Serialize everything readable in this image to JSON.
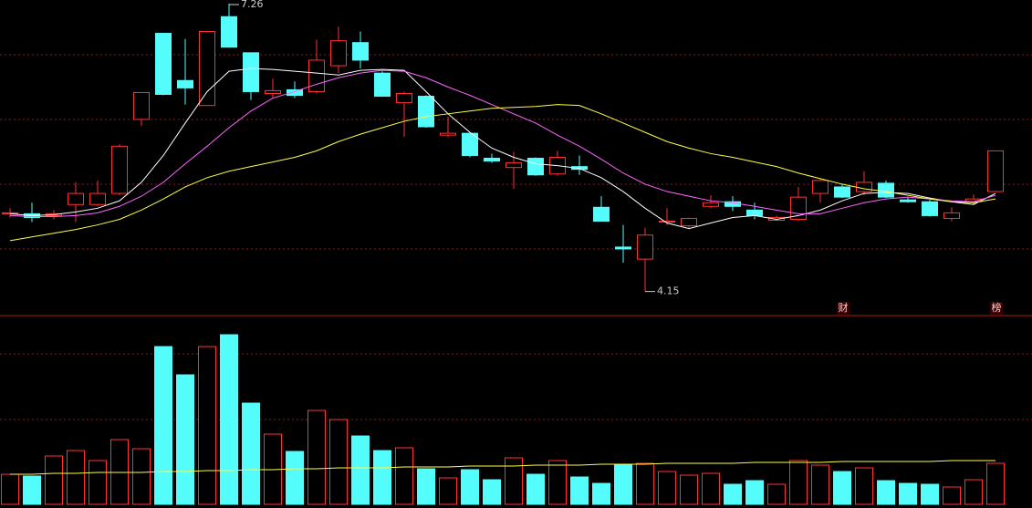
{
  "chart_data": {
    "type": "candlestick",
    "up_color": "#ff3232",
    "down_color": "#54fcfc",
    "ylim": [
      3.9,
      7.3
    ],
    "open": [
      5.0,
      4.99,
      4.97,
      5.09,
      5.09,
      5.21,
      6.01,
      6.94,
      6.43,
      6.16,
      7.12,
      6.73,
      6.29,
      6.33,
      6.31,
      6.59,
      6.84,
      6.51,
      6.19,
      6.26,
      5.84,
      5.86,
      5.59,
      5.49,
      5.59,
      5.42,
      5.5,
      5.06,
      4.63,
      4.5,
      4.9,
      4.86,
      5.07,
      5.12,
      5.03,
      4.92,
      4.93,
      5.21,
      5.28,
      5.23,
      5.32,
      5.14,
      5.12,
      4.94,
      5.12,
      5.23
    ],
    "high": [
      5.05,
      5.11,
      5.03,
      5.33,
      5.35,
      5.74,
      6.3,
      6.94,
      6.88,
      6.96,
      7.26,
      6.73,
      6.45,
      6.42,
      6.87,
      7.01,
      6.96,
      6.53,
      6.31,
      6.27,
      6.04,
      5.87,
      5.64,
      5.66,
      5.6,
      5.67,
      5.62,
      5.18,
      4.87,
      4.84,
      5.05,
      4.95,
      5.19,
      5.18,
      5.11,
      4.97,
      5.28,
      5.37,
      5.31,
      5.45,
      5.35,
      5.17,
      5.14,
      5.06,
      5.2,
      5.67
    ],
    "low": [
      4.95,
      4.9,
      4.93,
      4.9,
      5.07,
      5.19,
      5.94,
      6.27,
      6.17,
      6.16,
      6.79,
      6.22,
      6.24,
      6.24,
      6.29,
      6.51,
      6.56,
      6.26,
      5.82,
      5.92,
      5.82,
      5.6,
      5.54,
      5.26,
      5.4,
      5.4,
      5.41,
      4.91,
      4.46,
      4.15,
      4.87,
      4.84,
      5.05,
      5.02,
      4.93,
      4.91,
      4.91,
      5.11,
      5.16,
      5.19,
      5.16,
      5.11,
      4.96,
      4.91,
      5.09,
      5.23
    ],
    "close": [
      5.0,
      4.95,
      4.99,
      5.21,
      5.21,
      5.72,
      6.3,
      6.28,
      6.35,
      6.96,
      6.79,
      6.31,
      6.32,
      6.27,
      6.65,
      6.86,
      6.65,
      6.26,
      6.29,
      5.93,
      5.86,
      5.62,
      5.56,
      5.54,
      5.41,
      5.6,
      5.47,
      4.91,
      4.61,
      4.76,
      4.91,
      4.94,
      5.11,
      5.07,
      4.97,
      4.95,
      5.17,
      5.35,
      5.17,
      5.33,
      5.17,
      5.12,
      4.97,
      5.0,
      5.15,
      5.67
    ],
    "ma_lines": [
      {
        "color": "#ffffff",
        "values": [
          4.99,
          4.97,
          4.98,
          5.01,
          5.05,
          5.13,
          5.33,
          5.62,
          5.97,
          6.31,
          6.53,
          6.56,
          6.55,
          6.53,
          6.51,
          6.49,
          6.54,
          6.55,
          6.54,
          6.31,
          6.07,
          5.87,
          5.7,
          5.6,
          5.53,
          5.51,
          5.48,
          5.38,
          5.23,
          5.05,
          4.89,
          4.83,
          4.89,
          4.95,
          4.97,
          4.93,
          4.97,
          5.03,
          5.13,
          5.21,
          5.22,
          5.21,
          5.16,
          5.12,
          5.09,
          5.21
        ]
      },
      {
        "color": "#ff66ff",
        "values": [
          4.97,
          4.96,
          4.96,
          4.97,
          5.0,
          5.07,
          5.18,
          5.33,
          5.53,
          5.72,
          5.92,
          6.1,
          6.24,
          6.31,
          6.39,
          6.46,
          6.51,
          6.54,
          6.53,
          6.46,
          6.36,
          6.27,
          6.17,
          6.07,
          5.97,
          5.84,
          5.72,
          5.58,
          5.43,
          5.31,
          5.23,
          5.18,
          5.13,
          5.11,
          5.07,
          5.03,
          4.99,
          4.99,
          5.05,
          5.11,
          5.15,
          5.17,
          5.15,
          5.13,
          5.12,
          5.19
        ]
      },
      {
        "color": "#ffff44",
        "values": [
          4.7,
          4.74,
          4.78,
          4.82,
          4.87,
          4.93,
          5.03,
          5.15,
          5.28,
          5.38,
          5.45,
          5.5,
          5.55,
          5.6,
          5.67,
          5.77,
          5.85,
          5.92,
          5.99,
          6.04,
          6.07,
          6.1,
          6.13,
          6.14,
          6.15,
          6.17,
          6.16,
          6.07,
          5.97,
          5.87,
          5.77,
          5.7,
          5.64,
          5.6,
          5.55,
          5.5,
          5.43,
          5.37,
          5.31,
          5.26,
          5.23,
          5.19,
          5.15,
          5.12,
          5.11,
          5.15
        ]
      }
    ],
    "volume_ylim": [
      0,
      200
    ],
    "volume": [
      33,
      31,
      53,
      59,
      48,
      71,
      61,
      173,
      142,
      173,
      186,
      111,
      77,
      58,
      103,
      93,
      75,
      59,
      62,
      39,
      29,
      38,
      27,
      51,
      33,
      48,
      30,
      23,
      44,
      45,
      36,
      32,
      34,
      22,
      26,
      22,
      48,
      43,
      36,
      40,
      26,
      23,
      22,
      19,
      27,
      45
    ],
    "volume_ma": {
      "color": "#ffff44",
      "values": [
        33,
        33,
        34,
        34,
        35,
        35,
        35,
        36,
        36,
        37,
        37,
        38,
        38,
        39,
        39,
        40,
        40,
        40,
        41,
        41,
        41,
        42,
        42,
        42,
        43,
        43,
        43,
        44,
        44,
        44,
        45,
        45,
        45,
        45,
        46,
        46,
        46,
        46,
        47,
        47,
        47,
        47,
        47,
        48,
        48,
        48
      ]
    },
    "annotations": [
      "财",
      "榜"
    ]
  }
}
